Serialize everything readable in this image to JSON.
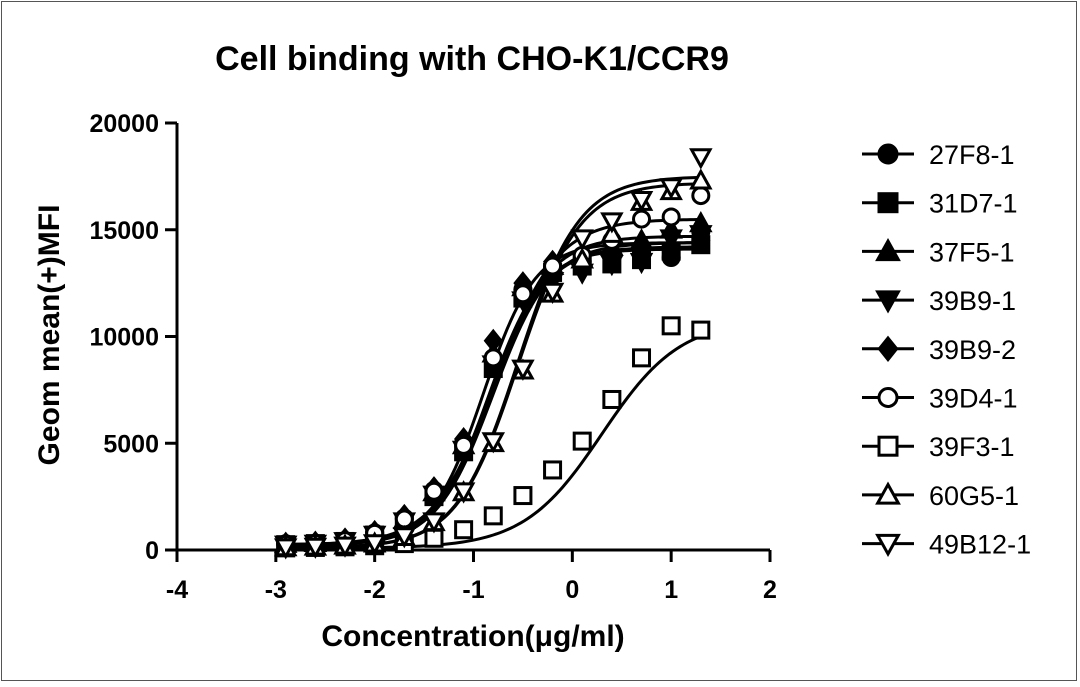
{
  "chart_data": {
    "type": "scatter",
    "title": "Cell binding with CHO-K1/CCR9",
    "xlabel": "Concentration(μg/ml)",
    "ylabel": "Geom mean(+)MFI",
    "xlim": [
      -4,
      2
    ],
    "ylim": [
      0,
      20000
    ],
    "x_ticks": [
      -4,
      -3,
      -2,
      -1,
      0,
      1,
      2
    ],
    "x_tick_labels": [
      "-4",
      "-3",
      "-2",
      "-1",
      "0",
      "1",
      "2"
    ],
    "y_ticks": [
      0,
      5000,
      10000,
      15000,
      20000
    ],
    "y_tick_labels": [
      "0",
      "5000",
      "10000",
      "15000",
      "20000"
    ],
    "fit": "four-parameter logistic",
    "x": [
      -2.9,
      -2.6,
      -2.3,
      -2.0,
      -1.7,
      -1.4,
      -1.1,
      -0.8,
      -0.5,
      -0.2,
      0.1,
      0.4,
      0.7,
      1.0,
      1.3
    ],
    "series": [
      {
        "name": "27F8-1",
        "marker": "circle",
        "fill": "filled",
        "values": [
          300,
          320,
          450,
          800,
          1500,
          2800,
          5000,
          9000,
          12200,
          13200,
          13500,
          13700,
          14000,
          13700,
          14900
        ],
        "fit_top": 14100,
        "fit_bottom": 250,
        "fit_ec50": -0.85,
        "fit_hill": 1.6
      },
      {
        "name": "31D7-1",
        "marker": "square",
        "fill": "filled",
        "values": [
          250,
          300,
          400,
          700,
          1300,
          2500,
          4600,
          8500,
          11800,
          13000,
          13300,
          13400,
          13600,
          14000,
          14300
        ],
        "fit_top": 14200,
        "fit_bottom": 220,
        "fit_ec50": -0.82,
        "fit_hill": 1.55
      },
      {
        "name": "37F5-1",
        "marker": "triangle-up",
        "fill": "filled",
        "values": [
          280,
          320,
          430,
          750,
          1400,
          2700,
          4900,
          9200,
          12300,
          13300,
          13600,
          14200,
          14500,
          15000,
          15300
        ],
        "fit_top": 14700,
        "fit_bottom": 250,
        "fit_ec50": -0.82,
        "fit_hill": 1.5
      },
      {
        "name": "39B9-1",
        "marker": "triangle-down",
        "fill": "filled",
        "values": [
          260,
          300,
          420,
          720,
          1350,
          2600,
          4700,
          8700,
          11700,
          12600,
          13000,
          13400,
          13500,
          14600,
          14800
        ],
        "fit_top": 14400,
        "fit_bottom": 230,
        "fit_ec50": -0.8,
        "fit_hill": 1.5
      },
      {
        "name": "39B9-2",
        "marker": "diamond",
        "fill": "filled",
        "values": [
          300,
          350,
          500,
          850,
          1600,
          2900,
          5200,
          9800,
          12500,
          13500,
          13800,
          14000,
          14200,
          14800,
          14500
        ],
        "fit_top": 14400,
        "fit_bottom": 260,
        "fit_ec50": -0.9,
        "fit_hill": 1.65
      },
      {
        "name": "39D4-1",
        "marker": "circle",
        "fill": "open",
        "values": [
          270,
          310,
          440,
          780,
          1450,
          2750,
          4900,
          9000,
          12000,
          13300,
          13800,
          14500,
          15500,
          15600,
          16600
        ],
        "fit_top": 15500,
        "fit_bottom": 240,
        "fit_ec50": -0.78,
        "fit_hill": 1.4
      },
      {
        "name": "39F3-1",
        "marker": "square",
        "fill": "open",
        "values": [
          100,
          120,
          150,
          200,
          300,
          550,
          950,
          1600,
          2550,
          3750,
          5100,
          7050,
          9000,
          10500,
          10300
        ],
        "fit_top": 10800,
        "fit_bottom": 80,
        "fit_ec50": 0.3,
        "fit_hill": 1.1
      },
      {
        "name": "60G5-1",
        "marker": "triangle-up",
        "fill": "open",
        "values": [
          120,
          150,
          200,
          300,
          600,
          1300,
          2700,
          5000,
          8400,
          12000,
          13600,
          14800,
          16300,
          16800,
          17300
        ],
        "fit_top": 17200,
        "fit_bottom": 100,
        "fit_ec50": -0.55,
        "fit_hill": 1.4
      },
      {
        "name": "49B12-1",
        "marker": "triangle-down",
        "fill": "open",
        "values": [
          130,
          160,
          210,
          320,
          650,
          1350,
          2750,
          5100,
          8500,
          12100,
          14600,
          15400,
          16400,
          17000,
          18400
        ],
        "fit_top": 17500,
        "fit_bottom": 110,
        "fit_ec50": -0.55,
        "fit_hill": 1.4
      }
    ]
  }
}
